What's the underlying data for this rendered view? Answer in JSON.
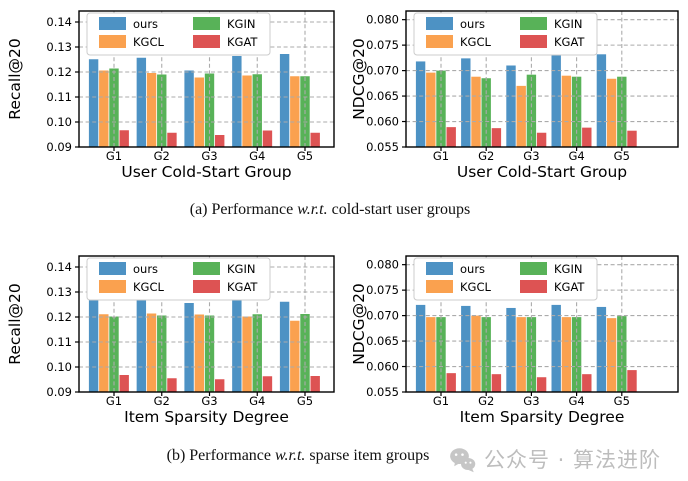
{
  "colors": {
    "ours": "#4D92C4",
    "KGCL": "#FAA14F",
    "KGIN": "#58B258",
    "KGAT": "#DD5353",
    "grid": "#ababab",
    "axis": "#000000",
    "legend_border": "#cccccc",
    "watermark": "#c6c6c6"
  },
  "chart_data": [
    {
      "type": "bar",
      "title": "",
      "xlabel": "User Cold-Start Group",
      "ylabel": "Recall@20",
      "categories": [
        "G1",
        "G2",
        "G3",
        "G4",
        "G5"
      ],
      "ylim": [
        0.09,
        0.1444
      ],
      "yticks": [
        0.09,
        0.1,
        0.11,
        0.12,
        0.13,
        0.14
      ],
      "ytick_labels": [
        "0.09",
        "0.10",
        "0.11",
        "0.12",
        "0.13",
        "0.14"
      ],
      "grid": true,
      "legend_position": "upper left",
      "series": [
        {
          "name": "ours",
          "values": [
            0.1251,
            0.1257,
            0.1206,
            0.1264,
            0.1272
          ]
        },
        {
          "name": "KGCL",
          "values": [
            0.1206,
            0.1196,
            0.1178,
            0.1186,
            0.1183
          ]
        },
        {
          "name": "KGIN",
          "values": [
            0.1214,
            0.119,
            0.1194,
            0.1191,
            0.1183
          ]
        },
        {
          "name": "KGAT",
          "values": [
            0.0967,
            0.0957,
            0.0948,
            0.0966,
            0.0957
          ]
        }
      ]
    },
    {
      "type": "bar",
      "title": "",
      "xlabel": "User Cold-Start Group",
      "ylabel": "NDCG@20",
      "categories": [
        "G1",
        "G2",
        "G3",
        "G4",
        "G5"
      ],
      "ylim": [
        0.055,
        0.0817
      ],
      "yticks": [
        0.055,
        0.06,
        0.065,
        0.07,
        0.075,
        0.08
      ],
      "ytick_labels": [
        "0.055",
        "0.060",
        "0.065",
        "0.070",
        "0.075",
        "0.080"
      ],
      "grid": true,
      "legend_position": "upper left",
      "series": [
        {
          "name": "ours",
          "values": [
            0.0718,
            0.0724,
            0.071,
            0.073,
            0.0732
          ]
        },
        {
          "name": "KGCL",
          "values": [
            0.0696,
            0.0688,
            0.067,
            0.069,
            0.0684
          ]
        },
        {
          "name": "KGIN",
          "values": [
            0.07,
            0.0685,
            0.0692,
            0.0688,
            0.0688
          ]
        },
        {
          "name": "KGAT",
          "values": [
            0.0589,
            0.0587,
            0.0578,
            0.0588,
            0.0582
          ]
        }
      ]
    },
    {
      "type": "bar",
      "title": "",
      "xlabel": "Item Sparsity Degree",
      "ylabel": "Recall@20",
      "categories": [
        "G1",
        "G2",
        "G3",
        "G4",
        "G5"
      ],
      "ylim": [
        0.09,
        0.1444
      ],
      "yticks": [
        0.09,
        0.1,
        0.11,
        0.12,
        0.13,
        0.14
      ],
      "ytick_labels": [
        "0.09",
        "0.10",
        "0.11",
        "0.12",
        "0.13",
        "0.14"
      ],
      "grid": true,
      "legend_position": "upper left",
      "series": [
        {
          "name": "ours",
          "values": [
            0.1273,
            0.1268,
            0.1256,
            0.1272,
            0.1261
          ]
        },
        {
          "name": "KGCL",
          "values": [
            0.1211,
            0.1214,
            0.121,
            0.1202,
            0.1185
          ]
        },
        {
          "name": "KGIN",
          "values": [
            0.1202,
            0.1206,
            0.1206,
            0.1211,
            0.1212
          ]
        },
        {
          "name": "KGAT",
          "values": [
            0.0968,
            0.0955,
            0.0951,
            0.0963,
            0.0964
          ]
        }
      ]
    },
    {
      "type": "bar",
      "title": "",
      "xlabel": "Item Sparsity Degree",
      "ylabel": "NDCG@20",
      "categories": [
        "G1",
        "G2",
        "G3",
        "G4",
        "G5"
      ],
      "ylim": [
        0.055,
        0.0817
      ],
      "yticks": [
        0.055,
        0.06,
        0.065,
        0.07,
        0.075,
        0.08
      ],
      "ytick_labels": [
        "0.055",
        "0.060",
        "0.065",
        "0.070",
        "0.075",
        "0.080"
      ],
      "grid": true,
      "legend_position": "upper left",
      "series": [
        {
          "name": "ours",
          "values": [
            0.0721,
            0.0719,
            0.0715,
            0.0721,
            0.0717
          ]
        },
        {
          "name": "KGCL",
          "values": [
            0.0697,
            0.07,
            0.0697,
            0.0697,
            0.0695
          ]
        },
        {
          "name": "KGIN",
          "values": [
            0.0697,
            0.0697,
            0.0697,
            0.0697,
            0.0699
          ]
        },
        {
          "name": "KGAT",
          "values": [
            0.0587,
            0.0585,
            0.0579,
            0.0585,
            0.0593
          ]
        }
      ]
    }
  ],
  "captions": {
    "a": {
      "prefix": "(a) Performance ",
      "italic": "w.r.t.",
      "suffix": " cold-start user groups"
    },
    "b": {
      "prefix": "(b) Performance ",
      "italic": "w.r.t.",
      "suffix": " sparse item groups"
    }
  },
  "watermark": {
    "icon": "wechat-icon",
    "text": "公众号 · 算法进阶"
  }
}
